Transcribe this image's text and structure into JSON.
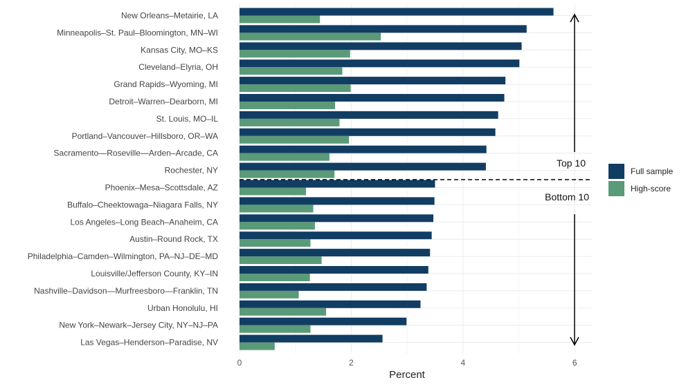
{
  "chart_data": {
    "type": "bar",
    "orientation": "horizontal",
    "title": "",
    "xlabel": "Percent",
    "ylabel": "",
    "xlim": [
      0,
      6.3
    ],
    "xticks": [
      0,
      2,
      4,
      6
    ],
    "grid": true,
    "legend_position": "right",
    "categories": [
      "New Orleans–Metairie, LA",
      "Minneapolis–St. Paul–Bloomington, MN–WI",
      "Kansas City, MO–KS",
      "Cleveland–Elyria, OH",
      "Grand Rapids–Wyoming, MI",
      "Detroit–Warren–Dearborn, MI",
      "St. Louis, MO–IL",
      "Portland–Vancouver–Hillsboro, OR–WA",
      "Sacramento—Roseville—Arden–Arcade, CA",
      "Rochester, NY",
      "Phoenix–Mesa–Scottsdale, AZ",
      "Buffalo–Cheektowaga–Niagara Falls, NY",
      "Los Angeles–Long Beach–Anaheim, CA",
      "Austin–Round Rock, TX",
      "Philadelphia–Camden–Wilmington, PA–NJ–DE–MD",
      "Louisville/Jefferson County, KY–IN",
      "Nashville–Davidson—Murfreesboro—Franklin, TN",
      "Urban Honolulu, HI",
      "New York–Newark–Jersey City, NY–NJ–PA",
      "Las Vegas–Henderson–Paradise, NV"
    ],
    "series": [
      {
        "name": "Full sample",
        "color": "#123d63",
        "values": [
          5.62,
          5.14,
          5.05,
          5.01,
          4.76,
          4.74,
          4.63,
          4.58,
          4.42,
          4.41,
          3.5,
          3.49,
          3.47,
          3.44,
          3.41,
          3.38,
          3.35,
          3.24,
          2.99,
          2.56
        ]
      },
      {
        "name": "High-score",
        "color": "#5a9a78",
        "values": [
          1.44,
          2.53,
          1.98,
          1.84,
          1.99,
          1.71,
          1.79,
          1.96,
          1.61,
          1.7,
          1.19,
          1.32,
          1.35,
          1.27,
          1.47,
          1.26,
          1.06,
          1.55,
          1.27,
          0.63
        ]
      }
    ],
    "annotations": {
      "top_label": "Top 10",
      "bottom_label": "Bottom 10"
    }
  }
}
